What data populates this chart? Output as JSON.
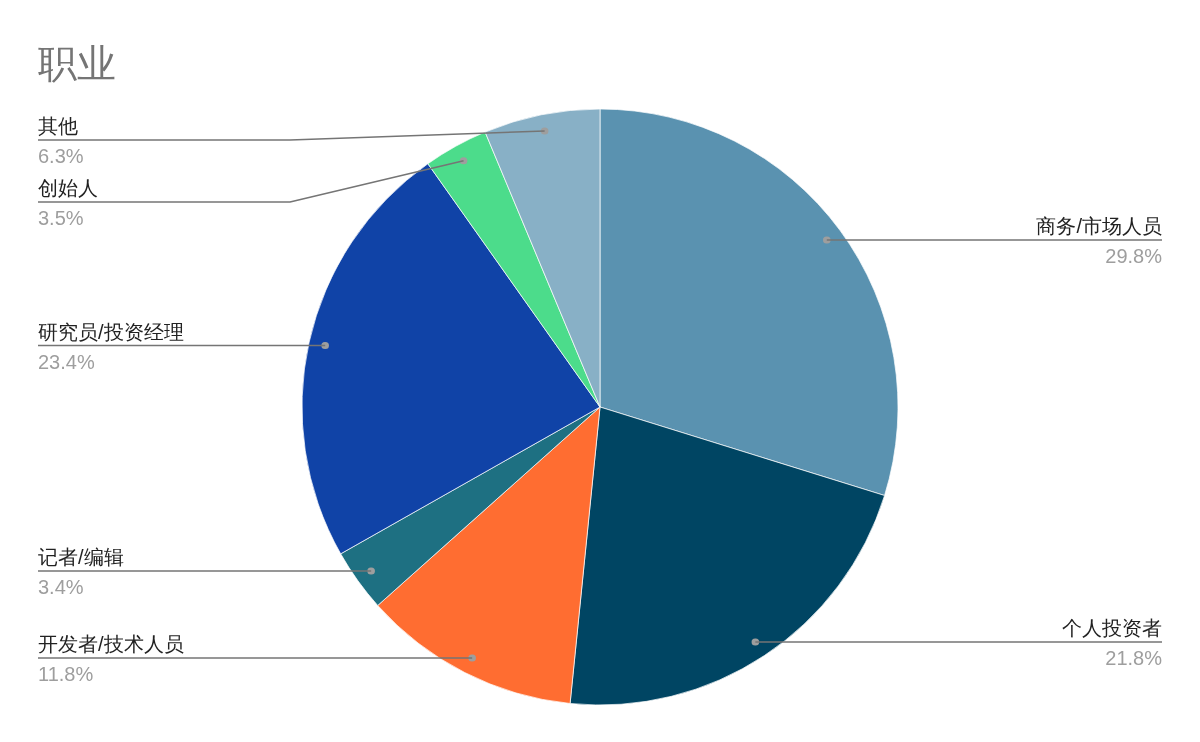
{
  "chart_data": {
    "type": "pie",
    "title": "职业",
    "categories": [
      "商务/市场人员",
      "个人投资者",
      "开发者/技术人员",
      "记者/编辑",
      "研究员/投资经理",
      "创始人",
      "其他"
    ],
    "values": [
      29.8,
      21.8,
      11.8,
      3.4,
      23.4,
      3.5,
      6.3
    ],
    "colors": [
      "#5a92b0",
      "#004563",
      "#ff6d31",
      "#1e7082",
      "#1043a7",
      "#4cdc8b",
      "#88b0c6"
    ],
    "value_labels": [
      "29.8%",
      "21.8%",
      "11.8%",
      "3.4%",
      "23.4%",
      "3.5%",
      "6.3%"
    ]
  }
}
